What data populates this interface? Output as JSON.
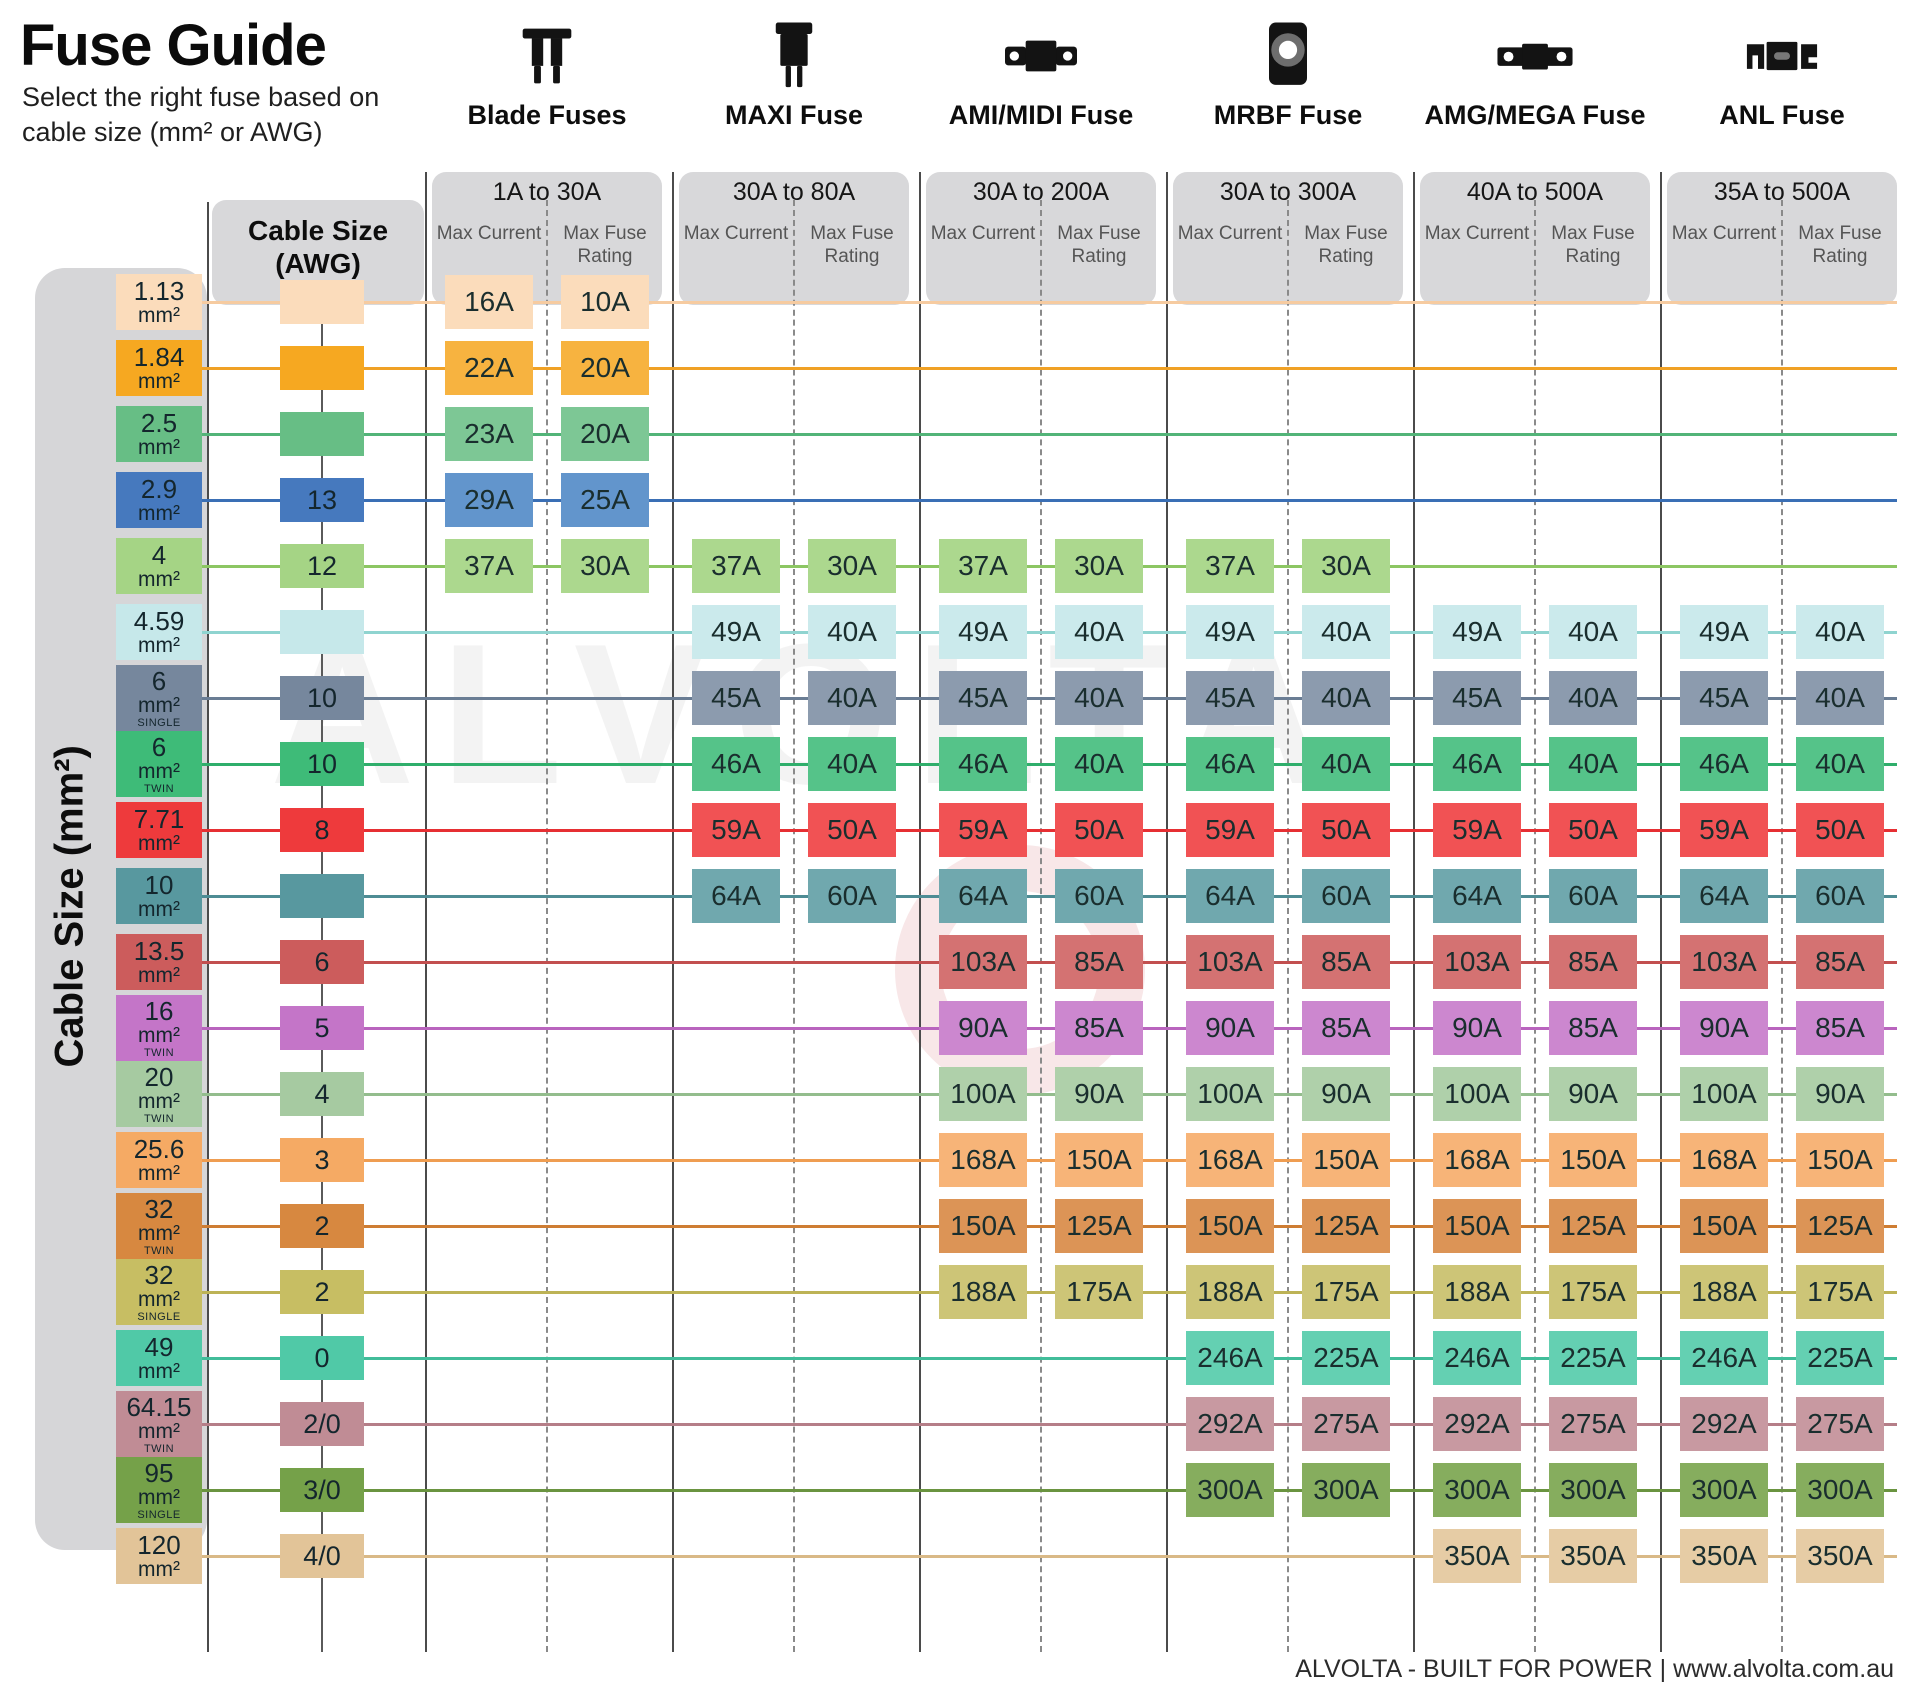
{
  "title": "Fuse Guide",
  "subtitle": "Select the right fuse based on cable size (mm² or AWG)",
  "watermark": "ALVOLTA",
  "footer": "ALVOLTA - BUILT FOR POWER | www.alvolta.com.au",
  "left_axis_label": "Cable Size (mm²)",
  "awg_header": "Cable Size (AWG)",
  "unit_label": "mm²",
  "col_headers": {
    "max_current": "Max Current",
    "max_fuse_rating": "Max Fuse Rating"
  },
  "fuse_types": [
    {
      "key": "blade",
      "name": "Blade Fuses",
      "range": "1A to 30A",
      "icon": "blade-fuse-icon"
    },
    {
      "key": "maxi",
      "name": "MAXI Fuse",
      "range": "30A to 80A",
      "icon": "maxi-fuse-icon"
    },
    {
      "key": "ami",
      "name": "AMI/MIDI Fuse",
      "range": "30A to 200A",
      "icon": "ami-midi-fuse-icon"
    },
    {
      "key": "mrbf",
      "name": "MRBF Fuse",
      "range": "30A to 300A",
      "icon": "mrbf-fuse-icon"
    },
    {
      "key": "amg",
      "name": "AMG/MEGA Fuse",
      "range": "40A to 500A",
      "icon": "amg-mega-fuse-icon"
    },
    {
      "key": "anl",
      "name": "ANL Fuse",
      "range": "35A to 500A",
      "icon": "anl-fuse-icon"
    }
  ],
  "chart_data": {
    "type": "table",
    "title": "Fuse Guide",
    "row_axis": "Cable Size (mm²)",
    "columns": [
      "Blade Fuses",
      "MAXI Fuse",
      "AMI/MIDI Fuse",
      "MRBF Fuse",
      "AMG/MEGA Fuse",
      "ANL Fuse"
    ],
    "column_ranges": [
      "1A to 30A",
      "30A to 80A",
      "30A to 200A",
      "30A to 300A",
      "40A to 500A",
      "35A to 500A"
    ],
    "sub_columns": [
      "Max Current",
      "Max Fuse Rating"
    ],
    "rows": [
      {
        "mm2": "1.13",
        "variant": "",
        "awg": "",
        "chip": "#FBDCBB",
        "box": "#FBDCBB",
        "line": "#F6CBA0",
        "values": [
          [
            "16A",
            "10A"
          ],
          null,
          null,
          null,
          null,
          null
        ]
      },
      {
        "mm2": "1.84",
        "variant": "",
        "awg": "",
        "chip": "#F6A821",
        "box": "#F7B340",
        "line": "#F0A125",
        "values": [
          [
            "22A",
            "20A"
          ],
          null,
          null,
          null,
          null,
          null
        ]
      },
      {
        "mm2": "2.5",
        "variant": "",
        "awg": "",
        "chip": "#67BE85",
        "box": "#7DC795",
        "line": "#52B478",
        "values": [
          [
            "23A",
            "20A"
          ],
          null,
          null,
          null,
          null,
          null
        ]
      },
      {
        "mm2": "2.9",
        "variant": "",
        "awg": "13",
        "chip": "#4679BE",
        "box": "#6295CC",
        "line": "#3A6FB5",
        "values": [
          [
            "29A",
            "25A"
          ],
          null,
          null,
          null,
          null,
          null
        ]
      },
      {
        "mm2": "4",
        "variant": "",
        "awg": "12",
        "chip": "#A5D485",
        "box": "#ACD88E",
        "line": "#8CC663",
        "values": [
          [
            "37A",
            "30A"
          ],
          [
            "37A",
            "30A"
          ],
          [
            "37A",
            "30A"
          ],
          [
            "37A",
            "30A"
          ],
          null,
          null
        ]
      },
      {
        "mm2": "4.59",
        "variant": "",
        "awg": "",
        "chip": "#C6E8EA",
        "box": "#CBEAEC",
        "line": "#8FD4D0",
        "values": [
          null,
          [
            "49A",
            "40A"
          ],
          [
            "49A",
            "40A"
          ],
          [
            "49A",
            "40A"
          ],
          [
            "49A",
            "40A"
          ],
          [
            "49A",
            "40A"
          ]
        ]
      },
      {
        "mm2": "6",
        "variant": "SINGLE",
        "awg": "10",
        "chip": "#76879D",
        "box": "#8C9BAE",
        "line": "#6A7D94",
        "values": [
          null,
          [
            "45A",
            "40A"
          ],
          [
            "45A",
            "40A"
          ],
          [
            "45A",
            "40A"
          ],
          [
            "45A",
            "40A"
          ],
          [
            "45A",
            "40A"
          ]
        ]
      },
      {
        "mm2": "6",
        "variant": "TWIN",
        "awg": "10",
        "chip": "#3EBB78",
        "box": "#55C389",
        "line": "#2FAE6B",
        "values": [
          null,
          [
            "46A",
            "40A"
          ],
          [
            "46A",
            "40A"
          ],
          [
            "46A",
            "40A"
          ],
          [
            "46A",
            "40A"
          ],
          [
            "46A",
            "40A"
          ]
        ]
      },
      {
        "mm2": "7.71",
        "variant": "",
        "awg": "8",
        "chip": "#EE3A3C",
        "box": "#F15254",
        "line": "#E62F33",
        "values": [
          null,
          [
            "59A",
            "50A"
          ],
          [
            "59A",
            "50A"
          ],
          [
            "59A",
            "50A"
          ],
          [
            "59A",
            "50A"
          ],
          [
            "59A",
            "50A"
          ]
        ]
      },
      {
        "mm2": "10",
        "variant": "",
        "awg": "",
        "chip": "#58989F",
        "box": "#70A8AE",
        "line": "#4E8C94",
        "values": [
          null,
          [
            "64A",
            "60A"
          ],
          [
            "64A",
            "60A"
          ],
          [
            "64A",
            "60A"
          ],
          [
            "64A",
            "60A"
          ],
          [
            "64A",
            "60A"
          ]
        ]
      },
      {
        "mm2": "13.5",
        "variant": "",
        "awg": "6",
        "chip": "#CC5C5C",
        "box": "#D47272",
        "line": "#C24F4F",
        "values": [
          null,
          null,
          [
            "103A",
            "85A"
          ],
          [
            "103A",
            "85A"
          ],
          [
            "103A",
            "85A"
          ],
          [
            "103A",
            "85A"
          ]
        ]
      },
      {
        "mm2": "16",
        "variant": "TWIN",
        "awg": "5",
        "chip": "#C475C8",
        "box": "#CC87CF",
        "line": "#B964BE",
        "values": [
          null,
          null,
          [
            "90A",
            "85A"
          ],
          [
            "90A",
            "85A"
          ],
          [
            "90A",
            "85A"
          ],
          [
            "90A",
            "85A"
          ]
        ]
      },
      {
        "mm2": "20",
        "variant": "TWIN",
        "awg": "4",
        "chip": "#A6CAA1",
        "box": "#AFD0AA",
        "line": "#93BD8D",
        "values": [
          null,
          null,
          [
            "100A",
            "90A"
          ],
          [
            "100A",
            "90A"
          ],
          [
            "100A",
            "90A"
          ],
          [
            "100A",
            "90A"
          ]
        ]
      },
      {
        "mm2": "25.6",
        "variant": "",
        "awg": "3",
        "chip": "#F5AA64",
        "box": "#F7B478",
        "line": "#EF9D51",
        "values": [
          null,
          null,
          [
            "168A",
            "150A"
          ],
          [
            "168A",
            "150A"
          ],
          [
            "168A",
            "150A"
          ],
          [
            "168A",
            "150A"
          ]
        ]
      },
      {
        "mm2": "32",
        "variant": "TWIN",
        "awg": "2",
        "chip": "#D78840",
        "box": "#DC9456",
        "line": "#CE7D33",
        "values": [
          null,
          null,
          [
            "150A",
            "125A"
          ],
          [
            "150A",
            "125A"
          ],
          [
            "150A",
            "125A"
          ],
          [
            "150A",
            "125A"
          ]
        ]
      },
      {
        "mm2": "32",
        "variant": "SINGLE",
        "awg": "2",
        "chip": "#C7BE63",
        "box": "#CDC577",
        "line": "#BDB356",
        "values": [
          null,
          null,
          [
            "188A",
            "175A"
          ],
          [
            "188A",
            "175A"
          ],
          [
            "188A",
            "175A"
          ],
          [
            "188A",
            "175A"
          ]
        ]
      },
      {
        "mm2": "49",
        "variant": "",
        "awg": "0",
        "chip": "#50C9A7",
        "box": "#64D0B2",
        "line": "#41BD9A",
        "values": [
          null,
          null,
          null,
          [
            "246A",
            "225A"
          ],
          [
            "246A",
            "225A"
          ],
          [
            "246A",
            "225A"
          ]
        ]
      },
      {
        "mm2": "64.15",
        "variant": "TWIN",
        "awg": "2/0",
        "chip": "#C08C95",
        "box": "#C899A1",
        "line": "#B57E88",
        "values": [
          null,
          null,
          null,
          [
            "292A",
            "275A"
          ],
          [
            "292A",
            "275A"
          ],
          [
            "292A",
            "275A"
          ]
        ]
      },
      {
        "mm2": "95",
        "variant": "SINGLE",
        "awg": "3/0",
        "chip": "#75A149",
        "box": "#86AD5E",
        "line": "#6A9440",
        "values": [
          null,
          null,
          null,
          [
            "300A",
            "300A"
          ],
          [
            "300A",
            "300A"
          ],
          [
            "300A",
            "300A"
          ]
        ]
      },
      {
        "mm2": "120",
        "variant": "",
        "awg": "4/0",
        "chip": "#E2C498",
        "box": "#E6CCA5",
        "line": "#D9B987",
        "values": [
          null,
          null,
          null,
          null,
          [
            "350A",
            "350A"
          ],
          [
            "350A",
            "350A"
          ]
        ]
      }
    ]
  }
}
